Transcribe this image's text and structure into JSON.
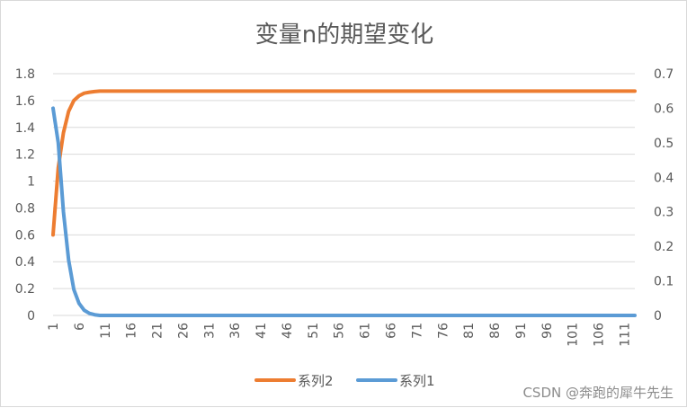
{
  "chart_data": {
    "type": "line",
    "title": "变量n的期望变化",
    "x_range": [
      1,
      113
    ],
    "x_tick_labels": [
      "1",
      "6",
      "11",
      "16",
      "21",
      "26",
      "31",
      "36",
      "41",
      "46",
      "51",
      "56",
      "61",
      "66",
      "71",
      "76",
      "81",
      "86",
      "91",
      "96",
      "101",
      "106",
      "111"
    ],
    "y_left": {
      "ylim": [
        0,
        1.8
      ],
      "tick_labels": [
        "0",
        "0.2",
        "0.4",
        "0.6",
        "0.8",
        "1",
        "1.2",
        "1.4",
        "1.6",
        "1.8"
      ]
    },
    "y_right": {
      "ylim": [
        0,
        0.7
      ],
      "tick_labels": [
        "0",
        "0.1",
        "0.2",
        "0.3",
        "0.4",
        "0.5",
        "0.6",
        "0.7"
      ]
    },
    "grid": true,
    "legend_position": "bottom",
    "series": [
      {
        "name": "系列2",
        "axis": "left",
        "color": "#ED7D31",
        "points": [
          [
            1,
            0.6
          ],
          [
            2,
            1.1
          ],
          [
            3,
            1.36
          ],
          [
            4,
            1.52
          ],
          [
            5,
            1.6
          ],
          [
            6,
            1.635
          ],
          [
            7,
            1.655
          ],
          [
            8,
            1.662
          ],
          [
            9,
            1.667
          ],
          [
            10,
            1.67
          ],
          [
            113,
            1.67
          ]
        ]
      },
      {
        "name": "系列1",
        "axis": "right",
        "color": "#5B9BD5",
        "points": [
          [
            1,
            0.6
          ],
          [
            2,
            0.5
          ],
          [
            3,
            0.3
          ],
          [
            4,
            0.16
          ],
          [
            5,
            0.075
          ],
          [
            6,
            0.035
          ],
          [
            7,
            0.015
          ],
          [
            8,
            0.006
          ],
          [
            9,
            0.002
          ],
          [
            10,
            0.0
          ],
          [
            113,
            0.0
          ]
        ]
      }
    ],
    "legend": [
      "系列2",
      "系列1"
    ]
  },
  "watermark": "CSDN @奔跑的犀牛先生"
}
